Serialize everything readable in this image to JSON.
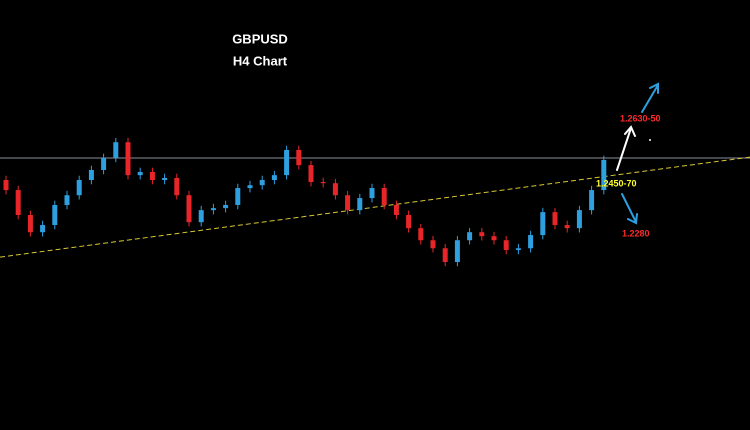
{
  "chart_data": {
    "type": "candlestick",
    "title": "GBPUSD",
    "subtitle": "H4 Chart",
    "ylim": [
      1.16,
      1.31
    ],
    "up_color": "#2e9fdf",
    "down_color": "#e8262a",
    "open": [
      1.2472,
      1.2437,
      1.235,
      1.229,
      1.2315,
      1.2385,
      1.2419,
      1.2472,
      1.2507,
      1.2549,
      1.2604,
      1.2489,
      1.25,
      1.2472,
      1.2479,
      1.2419,
      1.2325,
      1.2367,
      1.2374,
      1.2385,
      1.2444,
      1.2454,
      1.2472,
      1.2489,
      1.2577,
      1.2524,
      1.2465,
      1.2461,
      1.2419,
      1.2367,
      1.2409,
      1.2444,
      1.2385,
      1.235,
      1.2304,
      1.2262,
      1.2234,
      1.2186,
      1.2262,
      1.229,
      1.2276,
      1.2262,
      1.2228,
      1.2234,
      1.228,
      1.236,
      1.2315,
      1.2304,
      1.2367,
      1.2437
    ],
    "high": [
      1.2487,
      1.2452,
      1.2365,
      1.233,
      1.24,
      1.2434,
      1.2487,
      1.2522,
      1.2564,
      1.2619,
      1.2619,
      1.2515,
      1.2515,
      1.2494,
      1.2494,
      1.2434,
      1.2382,
      1.2389,
      1.24,
      1.2459,
      1.2469,
      1.2487,
      1.2504,
      1.2592,
      1.2592,
      1.2539,
      1.248,
      1.2476,
      1.2434,
      1.2424,
      1.2459,
      1.2459,
      1.24,
      1.2365,
      1.2319,
      1.2277,
      1.2249,
      1.2277,
      1.2305,
      1.2305,
      1.2291,
      1.2277,
      1.2249,
      1.2295,
      1.2375,
      1.2375,
      1.233,
      1.2382,
      1.2452,
      1.2557
    ],
    "low": [
      1.2422,
      1.2335,
      1.2275,
      1.2275,
      1.23,
      1.237,
      1.2404,
      1.2457,
      1.2492,
      1.2534,
      1.2474,
      1.2474,
      1.2457,
      1.2457,
      1.2404,
      1.231,
      1.231,
      1.2352,
      1.2359,
      1.237,
      1.2429,
      1.2439,
      1.2457,
      1.2474,
      1.2509,
      1.245,
      1.2446,
      1.2404,
      1.2352,
      1.2352,
      1.2394,
      1.237,
      1.2335,
      1.2289,
      1.2247,
      1.2219,
      1.2171,
      1.2171,
      1.2247,
      1.2261,
      1.2247,
      1.2213,
      1.2213,
      1.2219,
      1.2265,
      1.23,
      1.2289,
      1.2289,
      1.2352,
      1.2422
    ],
    "close": [
      1.2437,
      1.235,
      1.229,
      1.2315,
      1.2385,
      1.2419,
      1.2472,
      1.2507,
      1.2549,
      1.2604,
      1.2489,
      1.25,
      1.2472,
      1.2479,
      1.2419,
      1.2325,
      1.2367,
      1.2374,
      1.2385,
      1.2444,
      1.2454,
      1.2472,
      1.2489,
      1.2577,
      1.2524,
      1.2465,
      1.2461,
      1.2419,
      1.2367,
      1.2409,
      1.2444,
      1.2385,
      1.235,
      1.2304,
      1.2262,
      1.2234,
      1.2186,
      1.2262,
      1.229,
      1.2276,
      1.2262,
      1.2228,
      1.2234,
      1.228,
      1.236,
      1.2315,
      1.2304,
      1.2367,
      1.2437,
      1.2542
    ],
    "hline": {
      "value": 1.2549,
      "color": "#8a8f99"
    },
    "trendline": {
      "values": [
        1.2203,
        1.2552
      ],
      "color": "#d8c832"
    },
    "annotations": [
      {
        "text": "1.2630-50",
        "color": "#ff2a2a"
      },
      {
        "text": "1.2450-70",
        "color": "#ffff33"
      },
      {
        "text": "1.2280",
        "color": "#ff2a2a"
      }
    ]
  }
}
